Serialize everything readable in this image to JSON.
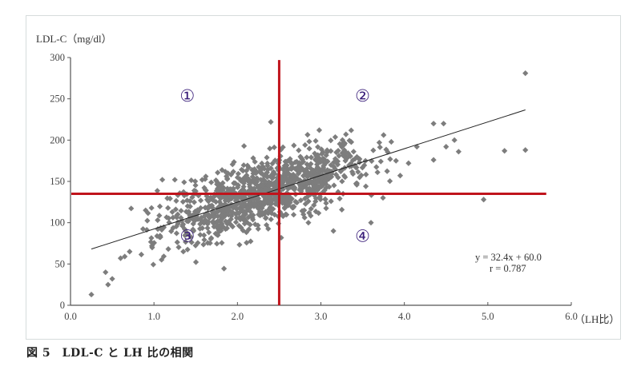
{
  "chart_data": {
    "type": "scatter",
    "title": "",
    "caption": "図 5　LDL-C と LH 比の相関",
    "xlabel": "（LH比）",
    "ylabel": "LDL-C（mg/dl）",
    "xlim": [
      0.0,
      6.0
    ],
    "ylim": [
      0,
      300
    ],
    "x_ticks": [
      "0.0",
      "1.0",
      "2.0",
      "3.0",
      "4.0",
      "5.0",
      "6.0"
    ],
    "y_ticks": [
      "0",
      "50",
      "100",
      "150",
      "200",
      "250",
      "300"
    ],
    "grid": false,
    "marker": "diamond",
    "marker_color": "#7d7d7d",
    "regression": {
      "equation": "y = 32.4x + 60.0",
      "r_label": "r = 0.787",
      "slope": 32.4,
      "intercept": 60.0,
      "r": 0.787,
      "x_range": [
        0.25,
        5.45
      ]
    },
    "threshold_lines": {
      "color": "#c0141c",
      "vertical_x": 2.5,
      "horizontal_y": 135,
      "vertical_y_range": [
        0,
        297
      ],
      "horizontal_x_range": [
        0.0,
        5.7
      ]
    },
    "quadrant_labels": [
      {
        "label": "①",
        "x": 1.4,
        "y": 247
      },
      {
        "label": "②",
        "x": 3.5,
        "y": 247
      },
      {
        "label": "③",
        "x": 1.4,
        "y": 77
      },
      {
        "label": "④",
        "x": 3.5,
        "y": 77
      }
    ],
    "outlier_points": [
      [
        0.25,
        13
      ],
      [
        0.45,
        25
      ],
      [
        0.5,
        32
      ],
      [
        0.42,
        40
      ],
      [
        0.6,
        57
      ],
      [
        0.65,
        59
      ],
      [
        0.9,
        115
      ],
      [
        1.1,
        152
      ],
      [
        1.25,
        152
      ],
      [
        2.4,
        222
      ],
      [
        3.3,
        207
      ],
      [
        3.7,
        197
      ],
      [
        4.35,
        220
      ],
      [
        4.47,
        220
      ],
      [
        4.15,
        192
      ],
      [
        4.6,
        200
      ],
      [
        4.35,
        176
      ],
      [
        4.65,
        186
      ],
      [
        4.95,
        128
      ],
      [
        5.2,
        187
      ],
      [
        5.45,
        188
      ],
      [
        5.45,
        281
      ],
      [
        4.5,
        192
      ],
      [
        3.95,
        157
      ],
      [
        3.9,
        175
      ],
      [
        4.05,
        172
      ],
      [
        3.6,
        100
      ],
      [
        3.15,
        90
      ],
      [
        2.8,
        115
      ]
    ],
    "n_points_approx": 1100
  }
}
